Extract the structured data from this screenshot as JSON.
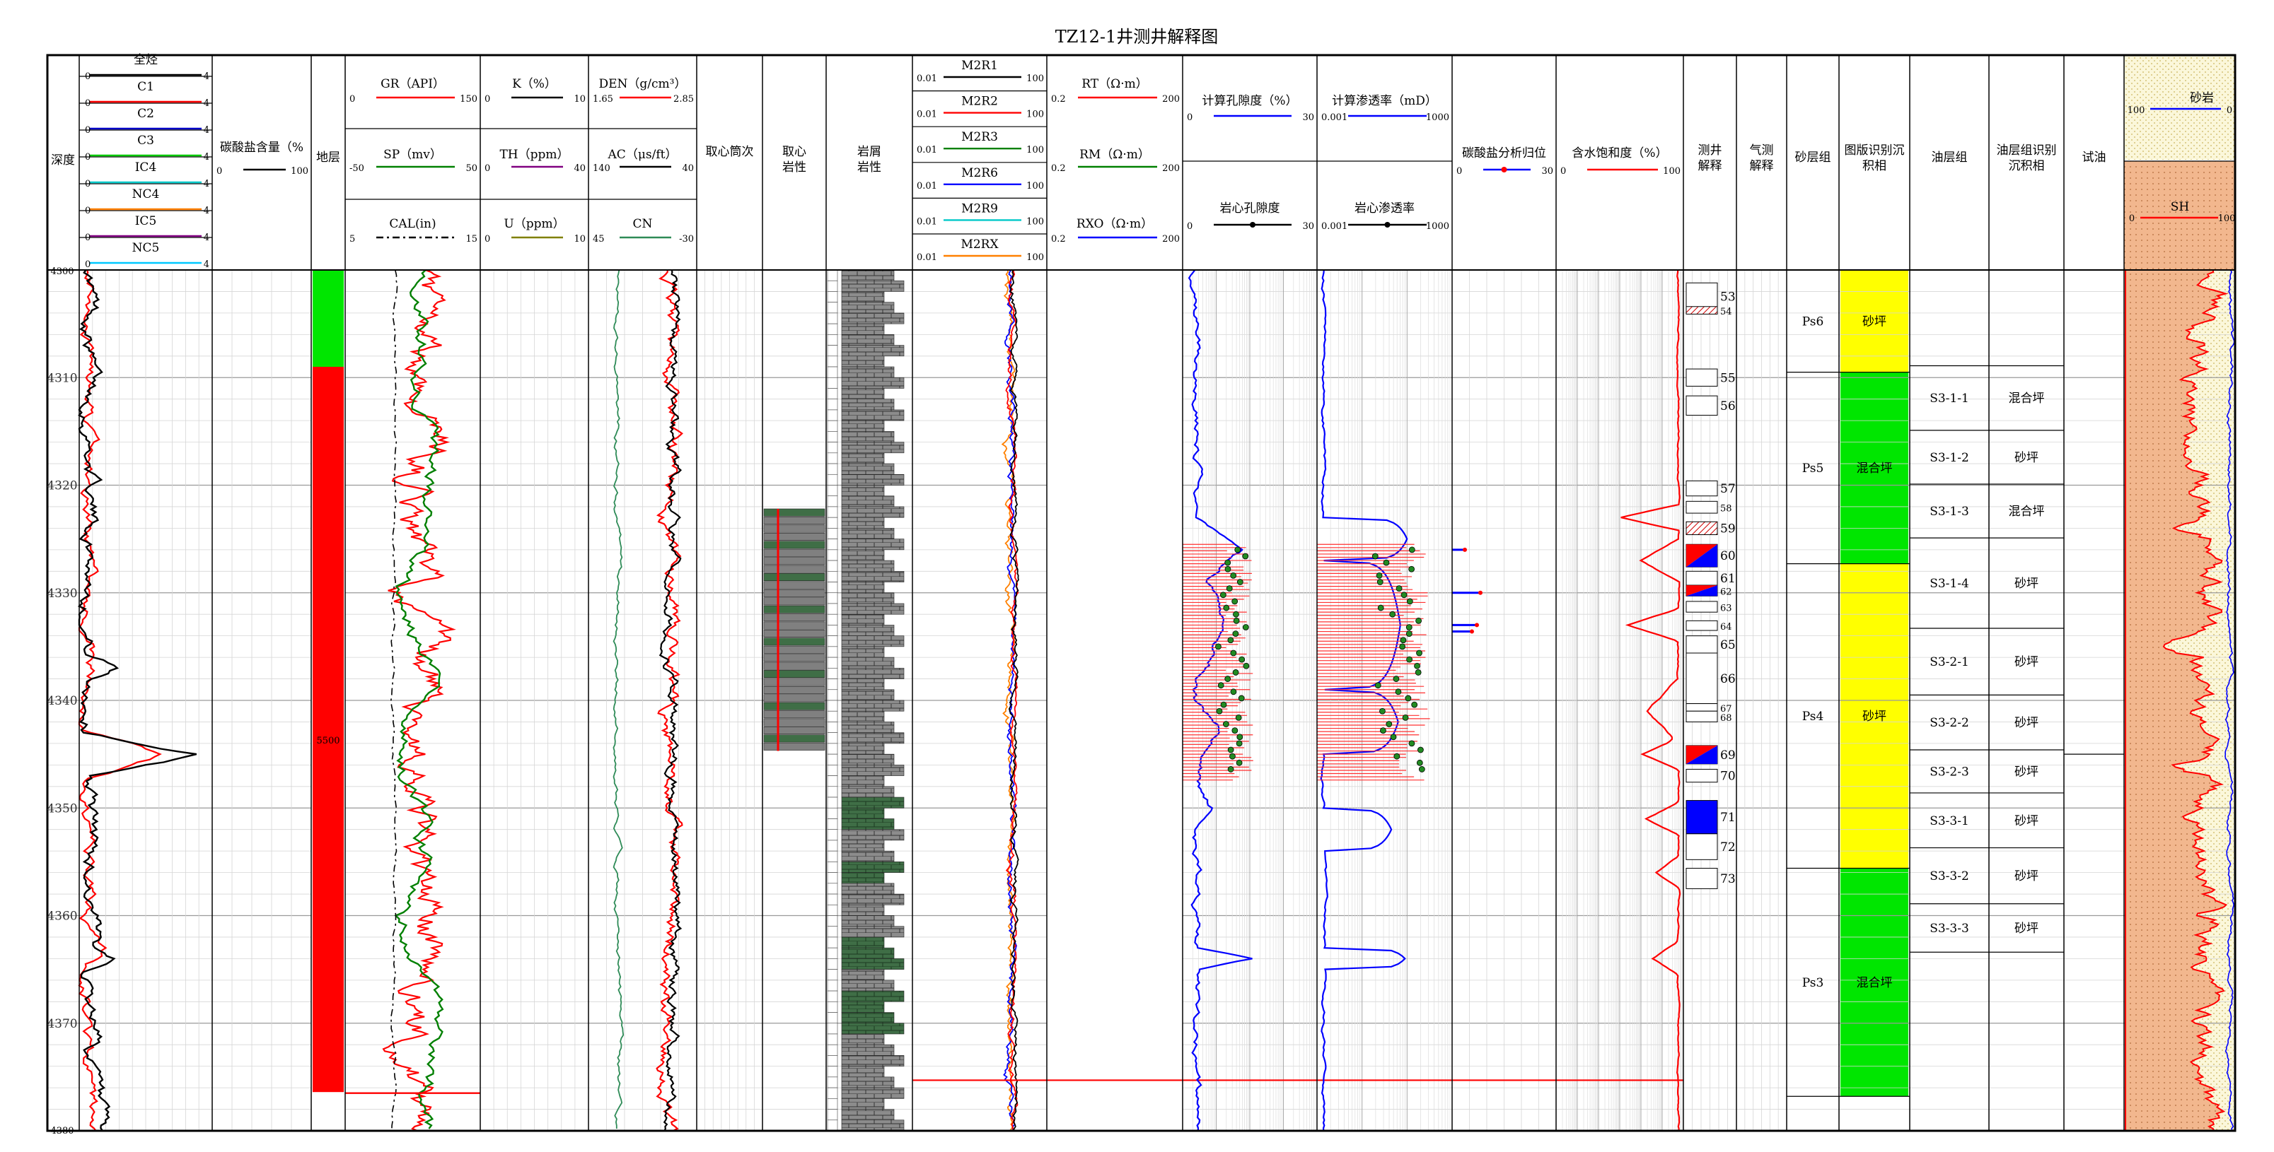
{
  "title": "TZ12-1井测井解释图",
  "chart_data": {
    "type": "line",
    "title": "TZ12-1井测井解释图",
    "depth_axis": {
      "label": "深度",
      "range": [
        4300,
        4380
      ],
      "ticks": [
        4310,
        4320,
        4330,
        4340,
        4350,
        4360,
        4370
      ],
      "edge_labels": [
        "4300",
        "4380"
      ]
    },
    "headers": {
      "gas": [
        {
          "name": "全烃",
          "lo": "0",
          "hi": "4",
          "color": "#000000"
        },
        {
          "name": "C1",
          "lo": "0",
          "hi": "4",
          "color": "#ff0000"
        },
        {
          "name": "C2",
          "lo": "0",
          "hi": "4",
          "color": "#0000c8"
        },
        {
          "name": "C3",
          "lo": "0",
          "hi": "4",
          "color": "#00c800"
        },
        {
          "name": "IC4",
          "lo": "0",
          "hi": "4",
          "color": "#00c8c8"
        },
        {
          "name": "NC4",
          "lo": "0",
          "hi": "4",
          "color": "#ff8000"
        },
        {
          "name": "IC5",
          "lo": "0",
          "hi": "4",
          "color": "#800080"
        },
        {
          "name": "NC5",
          "lo": "0",
          "hi": "4",
          "color": "#00c8ff"
        }
      ],
      "carbonate": {
        "name": "碳酸盐含量（%",
        "lo": "0",
        "hi": "100"
      },
      "stratum": "地层",
      "gr": {
        "name": "GR（API）",
        "lo": "0",
        "hi": "150"
      },
      "sp": {
        "name": "SP（mv）",
        "lo": "-50",
        "hi": "50"
      },
      "cal": {
        "name": "CAL(in)",
        "lo": "5",
        "hi": "15"
      },
      "k": {
        "name": "K（%）",
        "lo": "0",
        "hi": "10"
      },
      "th": {
        "name": "TH（ppm）",
        "lo": "0",
        "hi": "40"
      },
      "u": {
        "name": "U（ppm）",
        "lo": "0",
        "hi": "10"
      },
      "den": {
        "name": "DEN（g/cm³）",
        "lo": "1.65",
        "hi": "2.85"
      },
      "ac": {
        "name": "AC（μs/ft）",
        "lo": "140",
        "hi": "40"
      },
      "cn": {
        "name": "CN",
        "lo": "45",
        "hi": "-30"
      },
      "core_run": "取心筒次",
      "core_lith": [
        "取心",
        "岩性"
      ],
      "cutting_lith": [
        "岩屑",
        "岩性"
      ],
      "m2r": [
        {
          "name": "M2R1",
          "lo": "0.01",
          "hi": "100"
        },
        {
          "name": "M2R2",
          "lo": "0.01",
          "hi": "100"
        },
        {
          "name": "M2R3",
          "lo": "0.01",
          "hi": "100"
        },
        {
          "name": "M2R6",
          "lo": "0.01",
          "hi": "100"
        },
        {
          "name": "M2R9",
          "lo": "0.01",
          "hi": "100"
        },
        {
          "name": "M2RX",
          "lo": "0.01",
          "hi": "100"
        }
      ],
      "rt": {
        "name": "RT（Ω·m）",
        "lo": "0.2",
        "hi": "200"
      },
      "rm": {
        "name": "RM（Ω·m）",
        "lo": "0.2",
        "hi": "200"
      },
      "rxo": {
        "name": "RXO（Ω·m）",
        "lo": "0.2",
        "hi": "200"
      },
      "por_calc": {
        "name": "计算孔隙度（%）",
        "lo": "0",
        "hi": "30"
      },
      "por_core": {
        "name": "岩心孔隙度",
        "lo": "0",
        "hi": "30"
      },
      "perm_calc": {
        "name": "计算渗透率（mD）",
        "lo": "0.001",
        "hi": "1000"
      },
      "perm_core": {
        "name": "岩心渗透率",
        "lo": "0.001",
        "hi": "1000"
      },
      "carb_homing": {
        "name": "碳酸盐分析归位",
        "lo": "0",
        "hi": "30"
      },
      "sw": {
        "name": "含水饱和度（%）",
        "lo": "0",
        "hi": "100"
      },
      "log_interp": [
        "测井",
        "解释"
      ],
      "gas_test": [
        "气测",
        "解释"
      ],
      "sand_group": "砂层组",
      "facies_chart": [
        "图版识别沉",
        "积相"
      ],
      "oil_group": "油层组",
      "oil_facies": [
        "油层组识别",
        "沉积相"
      ],
      "test_oil": "试油",
      "sandstone": {
        "name": "砂岩",
        "lo": "100",
        "hi": "0"
      },
      "shale": {
        "name": "SH",
        "lo": "0",
        "hi": "100"
      }
    },
    "strata_label": "5500",
    "interp_zones": [
      {
        "n": "53",
        "top": 4301.2,
        "bot": 4303.7,
        "fill": "none"
      },
      {
        "n": "54",
        "top": 4303.4,
        "bot": 4304.1,
        "fill": "hatch"
      },
      {
        "n": "55",
        "top": 4309.2,
        "bot": 4310.8,
        "fill": "none"
      },
      {
        "n": "56",
        "top": 4311.7,
        "bot": 4313.5,
        "fill": "none"
      },
      {
        "n": "57",
        "top": 4319.6,
        "bot": 4321.0,
        "fill": "none"
      },
      {
        "n": "58",
        "top": 4321.5,
        "bot": 4322.6,
        "fill": "none"
      },
      {
        "n": "59",
        "top": 4323.4,
        "bot": 4324.6,
        "fill": "hatch"
      },
      {
        "n": "60",
        "top": 4325.5,
        "bot": 4327.6,
        "fill": "redblue"
      },
      {
        "n": "61",
        "top": 4328.0,
        "bot": 4329.3,
        "fill": "none"
      },
      {
        "n": "62",
        "top": 4329.3,
        "bot": 4330.3,
        "fill": "redblue"
      },
      {
        "n": "63",
        "top": 4330.8,
        "bot": 4331.8,
        "fill": "none"
      },
      {
        "n": "64",
        "top": 4332.6,
        "bot": 4333.5,
        "fill": "none"
      },
      {
        "n": "65",
        "top": 4334.0,
        "bot": 4335.6,
        "fill": "none"
      },
      {
        "n": "66",
        "top": 4335.6,
        "bot": 4340.3,
        "fill": "none"
      },
      {
        "n": "67",
        "top": 4340.3,
        "bot": 4341.0,
        "fill": "none"
      },
      {
        "n": "68",
        "top": 4341.0,
        "bot": 4342.0,
        "fill": "none"
      },
      {
        "n": "69",
        "top": 4344.2,
        "bot": 4345.9,
        "fill": "redblue"
      },
      {
        "n": "70",
        "top": 4346.4,
        "bot": 4347.6,
        "fill": "none"
      },
      {
        "n": "71",
        "top": 4349.3,
        "bot": 4352.4,
        "fill": "blue"
      },
      {
        "n": "72",
        "top": 4352.4,
        "bot": 4354.8,
        "fill": "none"
      },
      {
        "n": "73",
        "top": 4355.6,
        "bot": 4357.5,
        "fill": "none"
      }
    ],
    "sand_groups": [
      {
        "name": "Ps6",
        "top": 4300.0,
        "bot": 4309.5,
        "facies": "砂坪",
        "color": "#ffff00"
      },
      {
        "name": "Ps5",
        "top": 4309.5,
        "bot": 4327.3,
        "facies": "混合坪",
        "color": "#00e600"
      },
      {
        "name": "Ps4",
        "top": 4327.3,
        "bot": 4355.6,
        "facies": "砂坪",
        "color": "#ffff00"
      },
      {
        "name": "Ps3",
        "top": 4355.6,
        "bot": 4376.8,
        "facies": "混合坪",
        "color": "#00e600"
      }
    ],
    "oil_groups": [
      {
        "name": "S3-1-1",
        "top": 4308.9,
        "bot": 4314.9,
        "facies": "混合坪"
      },
      {
        "name": "S3-1-2",
        "top": 4314.9,
        "bot": 4319.9,
        "facies": "砂坪"
      },
      {
        "name": "S3-1-3",
        "top": 4319.9,
        "bot": 4324.9,
        "facies": "混合坪"
      },
      {
        "name": "S3-1-4",
        "top": 4324.9,
        "bot": 4333.3,
        "facies": "砂坪"
      },
      {
        "name": "S3-2-1",
        "top": 4333.3,
        "bot": 4339.5,
        "facies": "砂坪"
      },
      {
        "name": "S3-2-2",
        "top": 4339.5,
        "bot": 4344.6,
        "facies": "砂坪"
      },
      {
        "name": "S3-2-3",
        "top": 4344.6,
        "bot": 4348.6,
        "facies": "砂坪"
      },
      {
        "name": "S3-3-1",
        "top": 4348.6,
        "bot": 4353.7,
        "facies": "砂坪"
      },
      {
        "name": "S3-3-2",
        "top": 4353.7,
        "bot": 4358.9,
        "facies": "砂坪"
      },
      {
        "name": "S3-3-3",
        "top": 4358.9,
        "bot": 4363.4,
        "facies": "砂坪"
      }
    ],
    "stratum_intervals": [
      {
        "top": 4300.0,
        "bot": 4309.0,
        "color": "#00e600"
      },
      {
        "top": 4309.0,
        "bot": 4376.4,
        "color": "#ff0000"
      }
    ],
    "core_interval": {
      "top": 4322.2,
      "bot": 4344.7
    },
    "test_oil_mark": 4345.0
  }
}
